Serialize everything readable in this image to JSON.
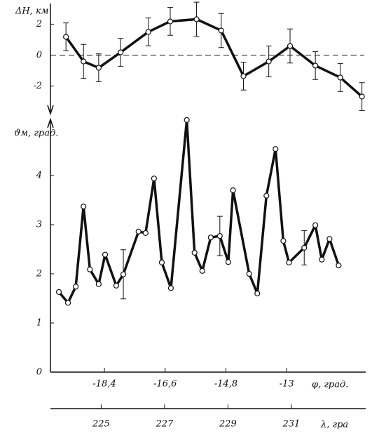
{
  "chart_data": [
    {
      "type": "line",
      "ylabel": "ΔH, км",
      "color": "#111",
      "zero_line": true,
      "x": [
        -19.54,
        -19.02,
        -18.57,
        -17.92,
        -17.1,
        -16.45,
        -15.67,
        -14.94,
        -14.28,
        -13.53,
        -12.9,
        -12.15,
        -11.41,
        -10.77
      ],
      "values": [
        1.18,
        -0.41,
        -0.82,
        0.18,
        1.5,
        2.18,
        2.32,
        1.59,
        -1.36,
        -0.41,
        0.59,
        -0.68,
        -1.45,
        -2.68
      ],
      "errors": [
        0.9,
        1.1,
        0.9,
        0.9,
        0.9,
        0.9,
        1.1,
        1.1,
        0.9,
        1.0,
        1.1,
        0.9,
        0.9,
        0.9
      ],
      "xlim": [
        -20,
        -10.7
      ],
      "ylim": [
        -3.7,
        3.2
      ],
      "yticks": [
        2,
        0,
        -2
      ]
    },
    {
      "type": "line",
      "ylabel": "ϑм, град.",
      "color": "#111",
      "x": [
        -19.75,
        -19.48,
        -19.25,
        -19.02,
        -18.83,
        -18.57,
        -18.38,
        -18.05,
        -17.84,
        -17.39,
        -17.18,
        -16.93,
        -16.7,
        -16.43,
        -15.96,
        -15.73,
        -15.5,
        -15.25,
        -14.98,
        -14.73,
        -14.59,
        -14.11,
        -13.87,
        -13.6,
        -13.33,
        -13.1,
        -12.93,
        -12.48,
        -12.15,
        -11.96,
        -11.73,
        -11.46
      ],
      "values": [
        1.63,
        1.41,
        1.74,
        3.37,
        2.09,
        1.79,
        2.39,
        1.76,
        1.99,
        2.86,
        2.83,
        3.94,
        2.23,
        1.71,
        5.13,
        2.43,
        2.06,
        2.74,
        2.77,
        2.24,
        3.7,
        2.0,
        1.6,
        3.59,
        4.54,
        2.67,
        2.23,
        2.53,
        2.99,
        2.29,
        2.71,
        2.17
      ],
      "errors": [
        null,
        null,
        null,
        null,
        null,
        null,
        null,
        null,
        0.5,
        null,
        null,
        null,
        null,
        null,
        null,
        null,
        null,
        null,
        0.4,
        null,
        null,
        null,
        null,
        null,
        null,
        null,
        null,
        0.35,
        null,
        null,
        null,
        null
      ],
      "xlim": [
        -20,
        -10.7
      ],
      "ylim": [
        0,
        5.2
      ],
      "yticks": [
        0,
        1,
        2,
        3,
        4
      ],
      "xlabel": "φ, град.",
      "xticks": [
        {
          "value": -18.4,
          "label": "-18,4"
        },
        {
          "value": -16.6,
          "label": "-16,6"
        },
        {
          "value": -14.8,
          "label": "-14,8"
        },
        {
          "value": -13,
          "label": "-13"
        }
      ],
      "x2label": "λ, гра",
      "x2lim": [
        223.4,
        233.3
      ],
      "x2ticks": [
        225,
        227,
        229,
        231
      ]
    }
  ]
}
